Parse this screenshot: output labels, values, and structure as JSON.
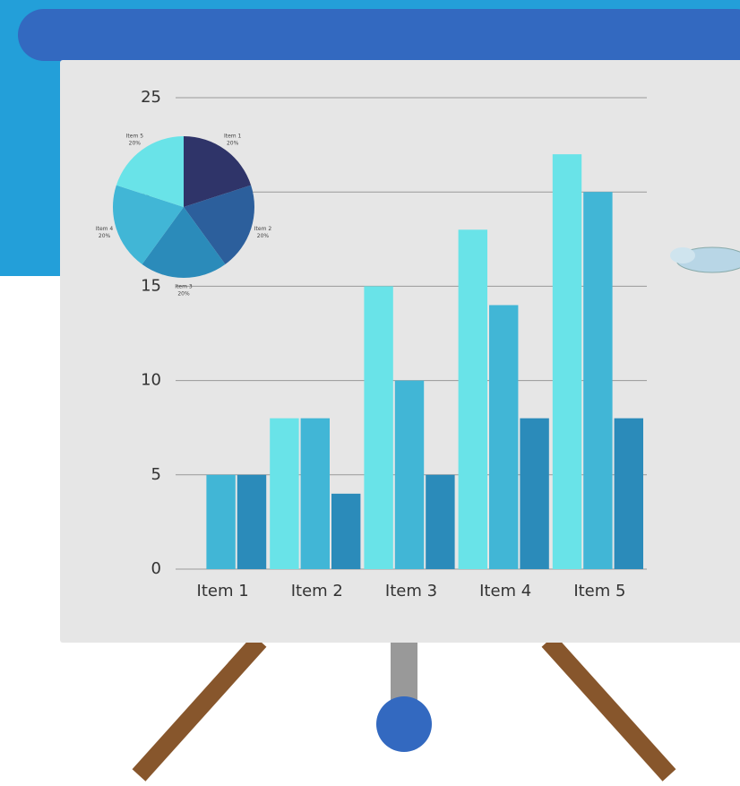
{
  "chart_data": [
    {
      "type": "bar",
      "categories": [
        "Item 1",
        "Item 2",
        "Item 3",
        "Item 4",
        "Item 5"
      ],
      "series": [
        {
          "color": "#69e3e8",
          "values": [
            0,
            8,
            15,
            18,
            22
          ]
        },
        {
          "color": "#41b6d6",
          "values": [
            5,
            8,
            10,
            14,
            20
          ]
        },
        {
          "color": "#2b8bba",
          "values": [
            5,
            4,
            5,
            8,
            8
          ]
        }
      ],
      "ylim": [
        0,
        25
      ],
      "yticks": [
        0,
        5,
        10,
        15,
        20,
        25
      ],
      "grid": true
    },
    {
      "type": "pie",
      "categories": [
        "Item 1",
        "Item 2",
        "Item 3",
        "Item 4",
        "Item 5"
      ],
      "values": [
        20,
        20,
        20,
        20,
        20
      ],
      "value_labels": [
        "20%",
        "20%",
        "20%",
        "20%",
        "20%"
      ],
      "colors": [
        "#2f3469",
        "#2c5f9c",
        "#2b8bba",
        "#41b6d6",
        "#69e3e8"
      ]
    }
  ]
}
